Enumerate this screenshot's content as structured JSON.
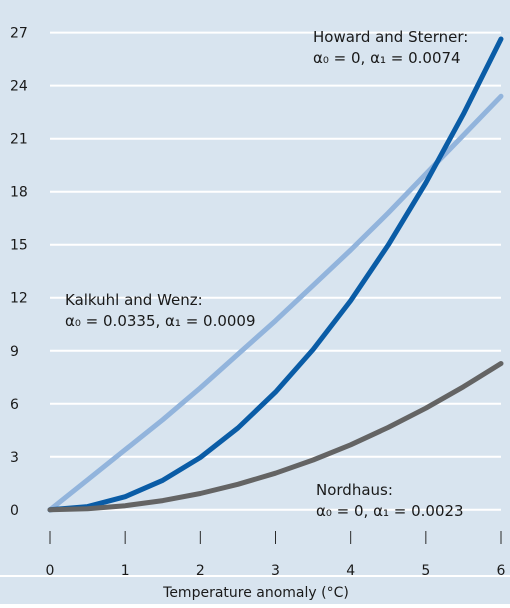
{
  "chart_data": {
    "type": "line",
    "xlabel": "Temperature anomaly (°C)",
    "ylabel": "",
    "xlim": [
      0,
      6
    ],
    "ylim": [
      -1.2,
      28
    ],
    "x_ticks": [
      0,
      1,
      2,
      3,
      4,
      5,
      6
    ],
    "y_ticks": [
      0,
      3,
      6,
      9,
      12,
      15,
      18,
      21,
      24,
      27
    ],
    "grid": "horizontal",
    "background_color": "#d8e4ef",
    "series": [
      {
        "key": "kalkuhl",
        "color": "#92b4dc",
        "x": [
          0,
          0.5,
          1,
          1.5,
          2,
          2.5,
          3,
          3.5,
          4,
          4.5,
          5,
          5.5,
          6
        ],
        "values": [
          0,
          1.7,
          3.4,
          5.1,
          6.9,
          8.8,
          10.7,
          12.7,
          14.7,
          16.8,
          19.0,
          21.2,
          23.4
        ]
      },
      {
        "key": "howard",
        "color": "#0a5ca6",
        "x": [
          0,
          0.5,
          1,
          1.5,
          2,
          2.5,
          3,
          3.5,
          4,
          4.5,
          5,
          5.5,
          6
        ],
        "values": [
          0,
          0.18,
          0.74,
          1.67,
          2.96,
          4.63,
          6.66,
          9.07,
          11.84,
          14.99,
          18.5,
          22.39,
          26.64
        ]
      },
      {
        "key": "nordhaus",
        "color": "#646464",
        "x": [
          0,
          0.5,
          1,
          1.5,
          2,
          2.5,
          3,
          3.5,
          4,
          4.5,
          5,
          5.5,
          6
        ],
        "values": [
          0,
          0.06,
          0.23,
          0.52,
          0.92,
          1.44,
          2.07,
          2.82,
          3.68,
          4.66,
          5.75,
          6.96,
          8.28
        ]
      }
    ],
    "annotations": [
      {
        "key": "howard-label",
        "lines": [
          "Howard and Sterner:",
          "α₀ = 0, α₁ = 0.0074"
        ]
      },
      {
        "key": "kalkuhl-label",
        "lines": [
          "Kalkuhl and Wenz:",
          "α₀ = 0.0335, α₁ = 0.0009"
        ]
      },
      {
        "key": "nordhaus-label",
        "lines": [
          "Nordhaus:",
          "α₀ = 0, α₁ = 0.0023"
        ]
      }
    ]
  }
}
